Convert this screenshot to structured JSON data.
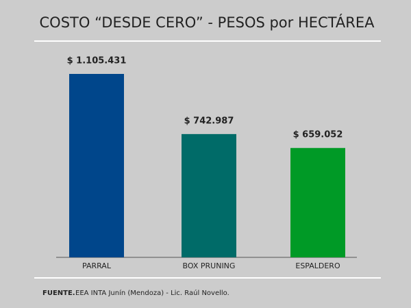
{
  "chart_data": {
    "type": "bar",
    "title": "COSTO “DESDE CERO” - PESOS por HECTÁREA",
    "categories": [
      "PARRAL",
      "BOX PRUNING",
      "ESPALDERO"
    ],
    "values": [
      1105431,
      742987,
      659052
    ],
    "value_labels": [
      "$ 1.105.431",
      "$ 742.987",
      "$ 659.052"
    ],
    "colors": [
      "#00468b",
      "#006b68",
      "#009a26"
    ],
    "source_label": "FUENTE.",
    "source_text": "EEA INTA Junín (Mendoza) - Lic. Raúl Novello."
  }
}
